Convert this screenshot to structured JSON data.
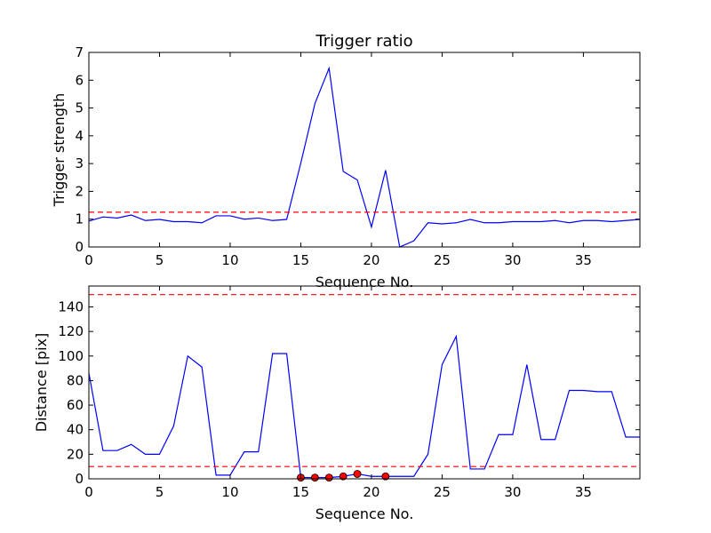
{
  "chart_data": [
    {
      "type": "line",
      "title": "Trigger ratio",
      "xlabel": "Sequence No.",
      "ylabel": "Trigger strength",
      "xlim": [
        0,
        39
      ],
      "ylim": [
        0,
        7
      ],
      "xticks": [
        0,
        5,
        10,
        15,
        20,
        25,
        30,
        35
      ],
      "yticks": [
        0,
        1,
        2,
        3,
        4,
        5,
        6,
        7
      ],
      "grid": false,
      "series": [
        {
          "color": "#0000ff",
          "x": [
            0,
            1,
            2,
            3,
            4,
            5,
            6,
            7,
            8,
            9,
            10,
            11,
            12,
            13,
            14,
            15,
            16,
            17,
            18,
            19,
            20,
            21,
            22,
            23,
            24,
            25,
            26,
            27,
            28,
            29,
            30,
            31,
            32,
            33,
            34,
            35,
            36,
            37,
            38,
            39
          ],
          "y": [
            0.93,
            1.08,
            1.04,
            1.15,
            0.95,
            0.99,
            0.91,
            0.91,
            0.87,
            1.12,
            1.12,
            1.0,
            1.04,
            0.95,
            0.99,
            3.02,
            5.16,
            6.43,
            2.72,
            2.41,
            0.72,
            2.76,
            0.0,
            0.22,
            0.87,
            0.83,
            0.87,
            0.99,
            0.87,
            0.87,
            0.91,
            0.91,
            0.91,
            0.95,
            0.87,
            0.95,
            0.95,
            0.91,
            0.95,
            0.99
          ]
        }
      ],
      "hlines": [
        {
          "y": 1.25,
          "color": "#ff0000",
          "style": "dashed"
        }
      ]
    },
    {
      "type": "line",
      "title": "",
      "xlabel": "Sequence No.",
      "ylabel": "Distance [pix]",
      "xlim": [
        0,
        39
      ],
      "ylim": [
        0,
        157
      ],
      "xticks": [
        0,
        5,
        10,
        15,
        20,
        25,
        30,
        35
      ],
      "yticks": [
        0,
        20,
        40,
        60,
        80,
        100,
        120,
        140
      ],
      "grid": false,
      "series": [
        {
          "color": "#0000ff",
          "x": [
            0,
            1,
            2,
            3,
            4,
            5,
            6,
            7,
            8,
            9,
            10,
            11,
            12,
            13,
            14,
            15,
            16,
            17,
            18,
            19,
            20,
            21,
            22,
            23,
            24,
            25,
            26,
            27,
            28,
            29,
            30,
            31,
            32,
            33,
            34,
            35,
            36,
            37,
            38,
            39
          ],
          "y": [
            86,
            23,
            23,
            28,
            20,
            20,
            43,
            100,
            91,
            3,
            3,
            22,
            22,
            102,
            102,
            1,
            1,
            1,
            2,
            4,
            2,
            2,
            2,
            2,
            20,
            93,
            116,
            8,
            8,
            36,
            36,
            93,
            32,
            32,
            72,
            72,
            71,
            71,
            34,
            34
          ]
        }
      ],
      "markers": {
        "color": "#ff0000",
        "x": [
          15,
          16,
          17,
          18,
          19,
          21
        ],
        "y": [
          1,
          1,
          1,
          2,
          4,
          2
        ]
      },
      "hlines": [
        {
          "y": 150,
          "color": "#ff0000",
          "style": "dashed"
        },
        {
          "y": 10,
          "color": "#ff0000",
          "style": "dashed"
        }
      ]
    }
  ]
}
